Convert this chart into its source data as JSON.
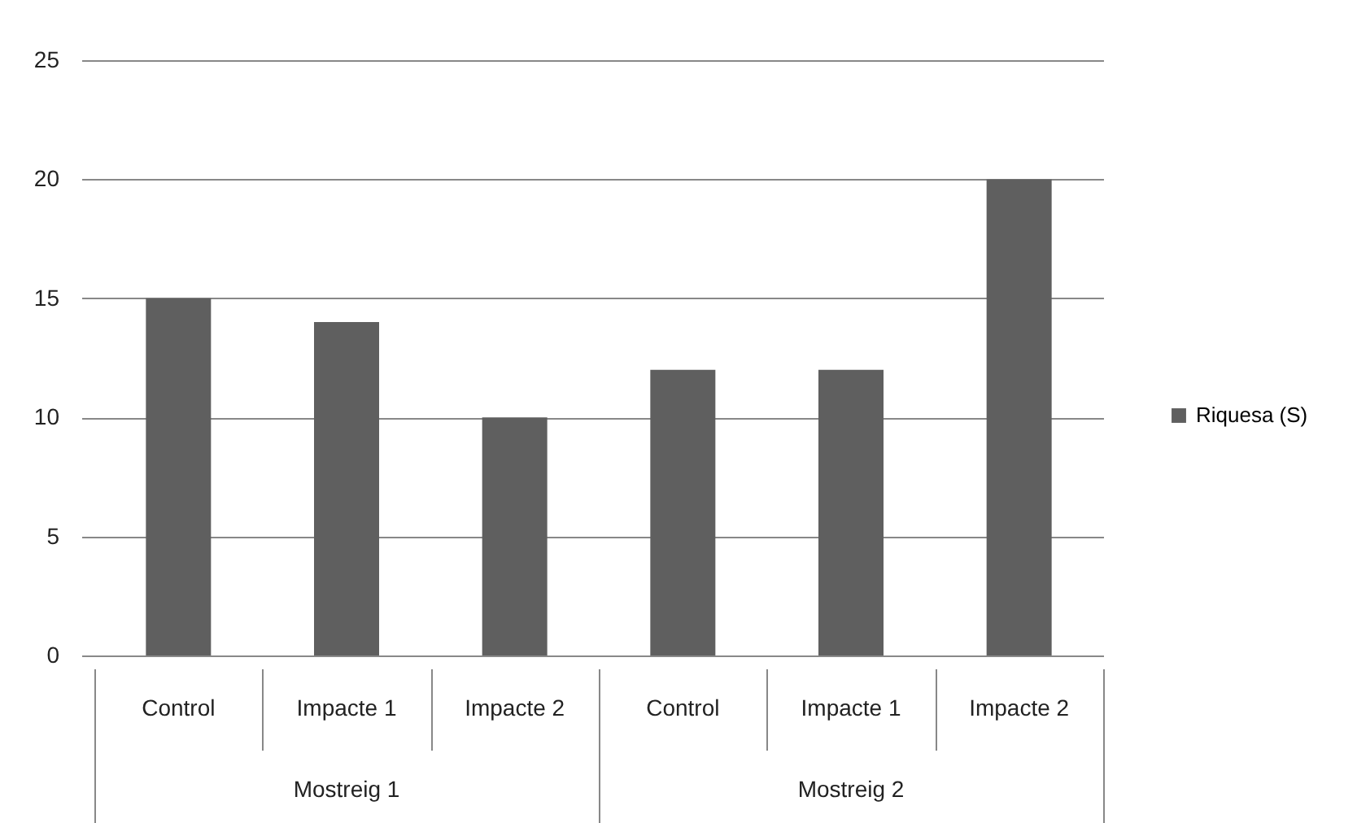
{
  "chart_data": {
    "type": "bar",
    "categories": [
      "Control",
      "Impacte 1",
      "Impacte 2",
      "Control",
      "Impacte 1",
      "Impacte 2"
    ],
    "series": [
      {
        "name": "Riquesa (S)",
        "color": "#5f5f5f",
        "values": [
          15,
          14,
          10,
          12,
          12,
          20
        ]
      }
    ],
    "annotations": [
      "Mostreig 1",
      "Mostreig 2"
    ],
    "ylim": [
      0,
      25
    ],
    "yticks": [
      0,
      5,
      10,
      15,
      20,
      25
    ],
    "grid": "y",
    "legend": "right"
  }
}
